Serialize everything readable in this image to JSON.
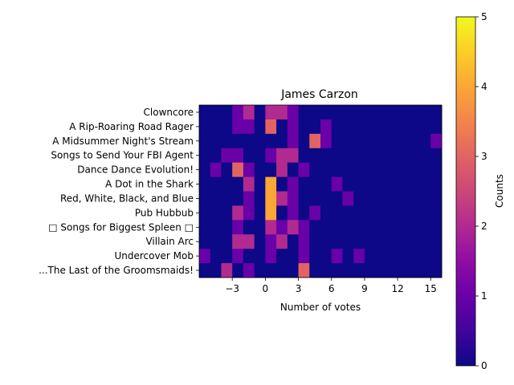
{
  "chart_data": {
    "type": "heatmap",
    "title": "James Carzon",
    "xlabel": "Number of votes",
    "ylabel": "",
    "colorbar_label": "Counts",
    "colormap": "plasma",
    "vmin": 0,
    "vmax": 5,
    "xlim": [
      -6,
      16
    ],
    "x_bin_start": -6,
    "x_bin_width": 1,
    "x_ticks": [
      -3,
      0,
      3,
      6,
      9,
      12,
      15
    ],
    "x_tick_labels": [
      "−3",
      "0",
      "3",
      "6",
      "9",
      "12",
      "15"
    ],
    "colorbar_ticks": [
      0,
      1,
      2,
      3,
      4,
      5
    ],
    "categories": [
      "Clowncore",
      "A Rip-Roaring Road Rager",
      "A Midsummer Night's Stream",
      "Songs to Send Your FBI Agent",
      "Dance Dance Evolution!",
      "A Dot in the Shark",
      "Red, White, Black, and Blue",
      "Pub Hubbub",
      "□ Songs for Biggest Spleen □",
      "Villain Arc",
      "Undercover Mob",
      "...The Last of the Groomsmaids!"
    ],
    "counts": [
      [
        0,
        0,
        0,
        1,
        2,
        0,
        2,
        2,
        1,
        0,
        0,
        0,
        0,
        0,
        0,
        0,
        0,
        0,
        0,
        0,
        0,
        0
      ],
      [
        0,
        0,
        0,
        1,
        1,
        0,
        3,
        0,
        1,
        0,
        0,
        1,
        0,
        0,
        0,
        0,
        0,
        0,
        0,
        0,
        0,
        0
      ],
      [
        0,
        0,
        0,
        0,
        0,
        0,
        0,
        0,
        1,
        0,
        3,
        1,
        0,
        0,
        0,
        0,
        0,
        0,
        0,
        0,
        0,
        1
      ],
      [
        0,
        0,
        1,
        1,
        0,
        0,
        1,
        2,
        2,
        0,
        0,
        0,
        0,
        0,
        0,
        0,
        0,
        0,
        0,
        0,
        0,
        0
      ],
      [
        0,
        1,
        0,
        3,
        1,
        0,
        0,
        2,
        0,
        1,
        0,
        0,
        0,
        0,
        0,
        0,
        0,
        0,
        0,
        0,
        0,
        0
      ],
      [
        0,
        0,
        0,
        0,
        2,
        0,
        4,
        0,
        1,
        0,
        0,
        0,
        1,
        0,
        0,
        0,
        0,
        0,
        0,
        0,
        0,
        0
      ],
      [
        0,
        0,
        0,
        0,
        1,
        0,
        4,
        2,
        1,
        0,
        0,
        0,
        0,
        1,
        0,
        0,
        0,
        0,
        0,
        0,
        0,
        0
      ],
      [
        0,
        0,
        0,
        2,
        1,
        0,
        4,
        0,
        1,
        0,
        1,
        0,
        0,
        0,
        0,
        0,
        0,
        0,
        0,
        0,
        0,
        0
      ],
      [
        0,
        0,
        0,
        1,
        0,
        0,
        2,
        1,
        2,
        1,
        0,
        0,
        0,
        0,
        0,
        0,
        0,
        0,
        0,
        0,
        0,
        0
      ],
      [
        0,
        0,
        0,
        2,
        2,
        0,
        1,
        2,
        0,
        1,
        0,
        0,
        0,
        0,
        0,
        0,
        0,
        0,
        0,
        0,
        0,
        0
      ],
      [
        1,
        0,
        0,
        1,
        0,
        0,
        1,
        0,
        0,
        1,
        0,
        0,
        1,
        0,
        1,
        0,
        0,
        0,
        0,
        0,
        0,
        0
      ],
      [
        0,
        0,
        2,
        0,
        1,
        0,
        0,
        0,
        0,
        3,
        0,
        0,
        0,
        0,
        0,
        0,
        0,
        0,
        0,
        0,
        0,
        0
      ]
    ]
  }
}
